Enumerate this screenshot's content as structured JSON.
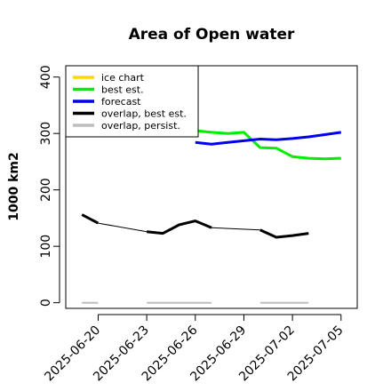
{
  "chart_data": {
    "type": "line",
    "title": "Area of Open water",
    "xlabel": "",
    "ylabel": "1000 km2",
    "ylim": [
      -10,
      420
    ],
    "yticks": [
      0,
      100,
      200,
      300,
      400
    ],
    "xlim": [
      "2025-06-18",
      "2025-07-06"
    ],
    "xticks": [
      "2025-06-20",
      "2025-06-23",
      "2025-06-26",
      "2025-06-29",
      "2025-07-02",
      "2025-07-05"
    ],
    "highlight_tick": "2025-06-26",
    "highlight_color": "#228b22",
    "grid": false,
    "legend_position": "top-left",
    "legend": [
      {
        "name": "ice chart",
        "color": "#ffd700"
      },
      {
        "name": "best est.",
        "color": "#00ee00"
      },
      {
        "name": "forecast",
        "color": "#0000ee"
      },
      {
        "name": "overlap, best est.",
        "color": "#000000"
      },
      {
        "name": "overlap, persist.",
        "color": "#bebebe"
      }
    ],
    "series": [
      {
        "name": "best est.",
        "color": "#00ee00",
        "width": 3,
        "points": [
          [
            "2025-06-26",
            305
          ],
          [
            "2025-06-27",
            302
          ],
          [
            "2025-06-28",
            300
          ],
          [
            "2025-06-29",
            302
          ],
          [
            "2025-06-30",
            275
          ],
          [
            "2025-07-01",
            274
          ],
          [
            "2025-07-02",
            259
          ],
          [
            "2025-07-03",
            256
          ],
          [
            "2025-07-04",
            255
          ],
          [
            "2025-07-05",
            256
          ]
        ]
      },
      {
        "name": "forecast",
        "color": "#0000ee",
        "width": 3,
        "points": [
          [
            "2025-06-26",
            284
          ],
          [
            "2025-06-27",
            281
          ],
          [
            "2025-06-28",
            284
          ],
          [
            "2025-06-29",
            287
          ],
          [
            "2025-06-30",
            290
          ],
          [
            "2025-07-01",
            289
          ],
          [
            "2025-07-02",
            291
          ],
          [
            "2025-07-03",
            294
          ],
          [
            "2025-07-04",
            298
          ],
          [
            "2025-07-05",
            302
          ]
        ]
      },
      {
        "name": "overlap, best est.",
        "color": "#000000",
        "segments": [
          {
            "width": 3,
            "points": [
              [
                "2025-06-19",
                156
              ],
              [
                "2025-06-20",
                141
              ]
            ]
          },
          {
            "width": 1,
            "points": [
              [
                "2025-06-20",
                141
              ],
              [
                "2025-06-23",
                126
              ]
            ]
          },
          {
            "width": 3,
            "points": [
              [
                "2025-06-23",
                126
              ],
              [
                "2025-06-24",
                123
              ],
              [
                "2025-06-25",
                138
              ],
              [
                "2025-06-26",
                145
              ],
              [
                "2025-06-27",
                133
              ]
            ]
          },
          {
            "width": 1,
            "points": [
              [
                "2025-06-27",
                133
              ],
              [
                "2025-06-30",
                129
              ]
            ]
          },
          {
            "width": 3,
            "points": [
              [
                "2025-06-30",
                129
              ],
              [
                "2025-07-01",
                116
              ],
              [
                "2025-07-02",
                119
              ],
              [
                "2025-07-03",
                123
              ]
            ]
          }
        ]
      },
      {
        "name": "overlap, persist.",
        "color": "#bebebe",
        "segments": [
          {
            "width": 2,
            "points": [
              [
                "2025-06-19",
                0
              ],
              [
                "2025-06-20",
                0
              ]
            ]
          },
          {
            "width": 2,
            "points": [
              [
                "2025-06-23",
                0
              ],
              [
                "2025-06-27",
                0
              ]
            ]
          },
          {
            "width": 2,
            "points": [
              [
                "2025-06-30",
                0
              ],
              [
                "2025-07-03",
                0
              ]
            ]
          }
        ]
      }
    ]
  }
}
